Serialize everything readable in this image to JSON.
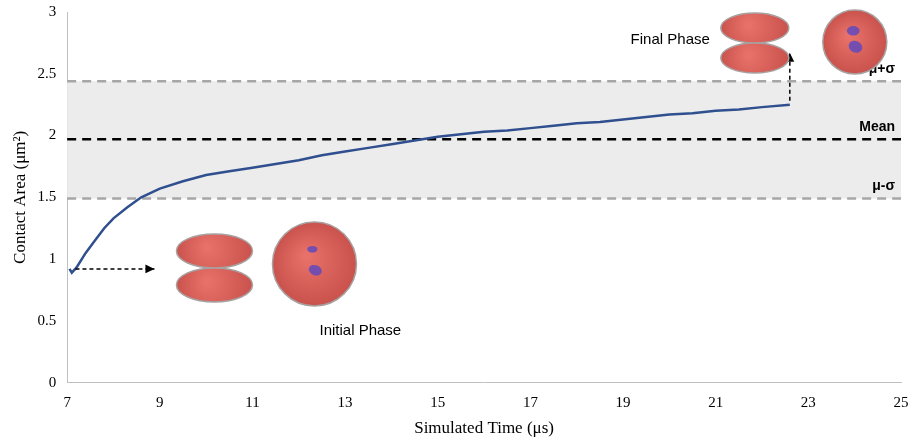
{
  "chart_data": {
    "type": "line",
    "x_label": "Simulated Time (μs)",
    "y_label": "Contact Area (μm²)",
    "x": [
      7.05,
      7.1,
      7.2,
      7.4,
      7.6,
      7.8,
      8,
      8.3,
      8.6,
      9,
      9.5,
      10,
      10.5,
      11,
      11.5,
      12,
      12.5,
      13,
      13.5,
      14,
      14.5,
      15,
      15.5,
      16,
      16.5,
      17,
      17.5,
      18,
      18.5,
      19,
      19.5,
      20,
      20.5,
      21,
      21.5,
      22,
      22.6
    ],
    "values": [
      0.92,
      0.89,
      0.93,
      1.05,
      1.15,
      1.25,
      1.33,
      1.42,
      1.5,
      1.57,
      1.63,
      1.68,
      1.71,
      1.74,
      1.77,
      1.8,
      1.84,
      1.87,
      1.9,
      1.93,
      1.96,
      1.99,
      2.01,
      2.03,
      2.04,
      2.06,
      2.08,
      2.1,
      2.11,
      2.13,
      2.15,
      2.17,
      2.18,
      2.2,
      2.21,
      2.23,
      2.25
    ],
    "color": "#2f4f8f",
    "marker": "none",
    "line_style": "solid",
    "xlim": [
      7,
      25
    ],
    "xticks": [
      7,
      9,
      11,
      13,
      15,
      17,
      19,
      21,
      23,
      25
    ],
    "ylim": [
      0,
      3
    ],
    "yticks": [
      0,
      0.5,
      1,
      1.5,
      2,
      2.5,
      3
    ],
    "grid": false,
    "reference_lines": [
      {
        "label": "μ+σ",
        "value": 2.44
      },
      {
        "label": "Mean",
        "value": 1.97
      },
      {
        "label": "μ-σ",
        "value": 1.49
      }
    ],
    "annotations": [
      "Initial Phase",
      "Final Phase"
    ]
  }
}
